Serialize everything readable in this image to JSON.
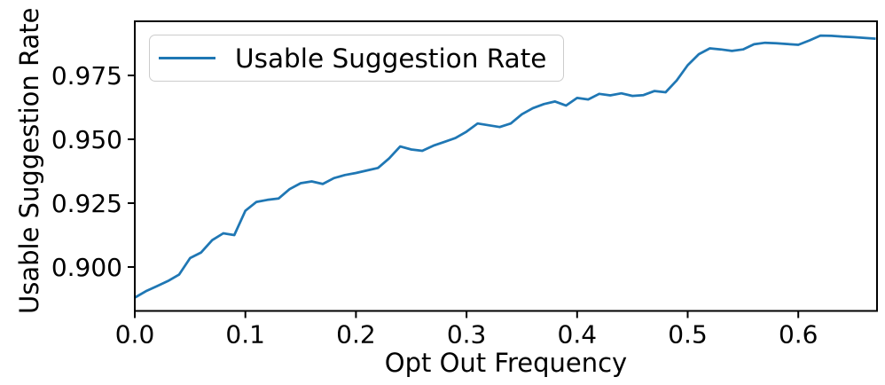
{
  "figure": {
    "background": "#ffffff",
    "xlabel": "Opt Out Frequency",
    "ylabel": "Usable Suggestion Rate",
    "legend": {
      "label": "Usable Suggestion Rate",
      "line_color": "#1f77b4"
    }
  },
  "chart_data": {
    "type": "line",
    "title": "",
    "xlabel": "Opt Out Frequency",
    "ylabel": "Usable Suggestion Rate",
    "legend_entries": [
      "Usable Suggestion Rate"
    ],
    "legend_position": "upper left",
    "grid": false,
    "line_color": "#1f77b4",
    "axis_color": "#000000",
    "xlim": [
      0.0,
      0.6712
    ],
    "ylim": [
      0.8828,
      0.9962
    ],
    "xticks": [
      0.0,
      0.1,
      0.2,
      0.3,
      0.4,
      0.5,
      0.6
    ],
    "xtick_labels": [
      "0.0",
      "0.1",
      "0.2",
      "0.3",
      "0.4",
      "0.5",
      "0.6"
    ],
    "yticks": [
      0.9,
      0.925,
      0.95,
      0.975
    ],
    "ytick_labels": [
      "0.900",
      "0.925",
      "0.950",
      "0.975"
    ],
    "series": [
      {
        "name": "Usable Suggestion Rate",
        "x": [
          0.0,
          0.01,
          0.02,
          0.03,
          0.04,
          0.05,
          0.06,
          0.07,
          0.08,
          0.09,
          0.1,
          0.11,
          0.12,
          0.13,
          0.14,
          0.15,
          0.16,
          0.17,
          0.18,
          0.19,
          0.2,
          0.21,
          0.22,
          0.23,
          0.24,
          0.25,
          0.26,
          0.27,
          0.28,
          0.29,
          0.3,
          0.31,
          0.32,
          0.33,
          0.34,
          0.35,
          0.36,
          0.37,
          0.38,
          0.39,
          0.4,
          0.41,
          0.42,
          0.43,
          0.44,
          0.45,
          0.46,
          0.47,
          0.48,
          0.49,
          0.5,
          0.51,
          0.52,
          0.53,
          0.54,
          0.55,
          0.56,
          0.57,
          0.58,
          0.59,
          0.6,
          0.61,
          0.62,
          0.63,
          0.64,
          0.65,
          0.66,
          0.67
        ],
        "y": [
          0.888,
          0.8905,
          0.8925,
          0.8945,
          0.897,
          0.9035,
          0.9057,
          0.9105,
          0.9132,
          0.9125,
          0.922,
          0.9255,
          0.9263,
          0.9268,
          0.9305,
          0.9328,
          0.9335,
          0.9325,
          0.9348,
          0.936,
          0.9368,
          0.9378,
          0.9388,
          0.9425,
          0.9472,
          0.946,
          0.9455,
          0.9475,
          0.949,
          0.9505,
          0.953,
          0.9562,
          0.9555,
          0.9548,
          0.9562,
          0.9598,
          0.9622,
          0.9638,
          0.9648,
          0.9632,
          0.9662,
          0.9656,
          0.9678,
          0.9672,
          0.968,
          0.967,
          0.9673,
          0.9689,
          0.9684,
          0.973,
          0.979,
          0.9833,
          0.9856,
          0.9852,
          0.9846,
          0.9852,
          0.9872,
          0.9878,
          0.9876,
          0.9873,
          0.987,
          0.9887,
          0.9906,
          0.9905,
          0.9902,
          0.99,
          0.9897,
          0.9894
        ]
      }
    ]
  }
}
